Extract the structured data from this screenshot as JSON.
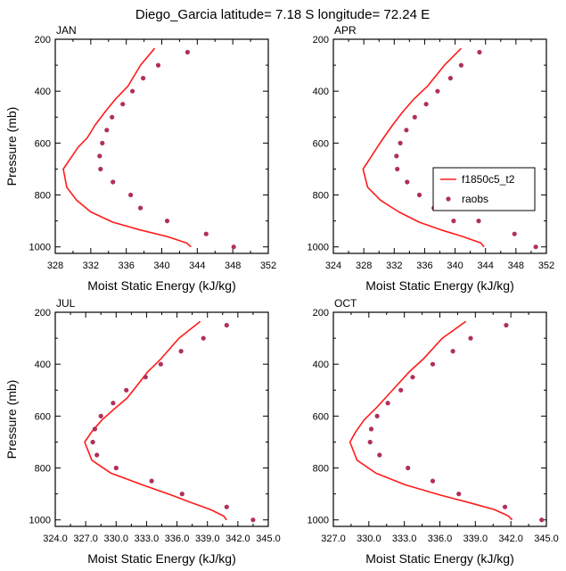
{
  "figure": {
    "title": "Diego_Garcia  latitude= 7.18 S longitude= 72.24 E"
  },
  "legend": {
    "position": "inside APR panel, right-center",
    "line_label": "f1850c5_t2",
    "dot_label": "raobs"
  },
  "colors": {
    "model_line": "#ff1a1a",
    "obs_dots": "#b0305a",
    "axis": "#000000"
  },
  "chart_data": [
    {
      "type": "line",
      "panel": "JAN",
      "month_label": "JAN",
      "xlabel": "Moist Static Energy (kJ/kg)",
      "ylabel": "Pressure (mb)",
      "xlim": [
        328,
        352
      ],
      "ylim": [
        200,
        1025
      ],
      "y_inverted": true,
      "xticks": [
        328,
        332,
        336,
        340,
        344,
        348,
        352
      ],
      "xtick_labels": [
        "328",
        "332",
        "336",
        "340",
        "344",
        "348",
        "352"
      ],
      "yticks": [
        200,
        400,
        600,
        800,
        1000
      ],
      "ytick_labels": [
        "200",
        "400",
        "600",
        "800",
        "1000"
      ],
      "show_ylabel": true,
      "series": [
        {
          "name": "f1850c5_t2",
          "kind": "line",
          "x": [
            339.2,
            337.6,
            336.2,
            334.8,
            333.6,
            332.5,
            331.6,
            330.6,
            329.7,
            328.9,
            329.3,
            330.4,
            332.0,
            334.5,
            337.6,
            340.6,
            342.8,
            343.3
          ],
          "y": [
            235,
            300,
            380,
            430,
            480,
            530,
            580,
            615,
            660,
            700,
            770,
            820,
            865,
            905,
            935,
            960,
            985,
            1000
          ]
        },
        {
          "name": "raobs",
          "kind": "scatter",
          "x": [
            342.9,
            339.6,
            337.9,
            336.7,
            335.6,
            334.4,
            333.8,
            333.3,
            333.0,
            333.1,
            334.5,
            336.5,
            337.6,
            340.6,
            345.0,
            348.1
          ],
          "y": [
            250,
            300,
            350,
            400,
            450,
            500,
            550,
            600,
            650,
            700,
            750,
            800,
            850,
            900,
            950,
            1000
          ]
        }
      ]
    },
    {
      "type": "line",
      "panel": "APR",
      "month_label": "APR",
      "xlabel": "Moist Static Energy (kJ/kg)",
      "ylabel": "",
      "xlim": [
        324,
        352
      ],
      "ylim": [
        200,
        1025
      ],
      "y_inverted": true,
      "xticks": [
        324,
        328,
        332,
        336,
        340,
        344,
        348,
        352
      ],
      "xtick_labels": [
        "324",
        "328",
        "332",
        "336",
        "340",
        "344",
        "348",
        "352"
      ],
      "yticks": [
        200,
        400,
        600,
        800,
        1000
      ],
      "ytick_labels": [
        "200",
        "400",
        "600",
        "800",
        "1000"
      ],
      "show_ylabel": false,
      "series": [
        {
          "name": "f1850c5_t2",
          "kind": "line",
          "x": [
            340.8,
            338.6,
            336.4,
            334.6,
            333.1,
            331.8,
            330.6,
            329.8,
            328.8,
            327.9,
            328.5,
            330.2,
            332.6,
            335.3,
            338.2,
            341.0,
            343.4,
            343.8
          ],
          "y": [
            235,
            300,
            380,
            430,
            480,
            530,
            580,
            615,
            660,
            700,
            770,
            820,
            865,
            905,
            935,
            960,
            985,
            1000
          ]
        },
        {
          "name": "raobs",
          "kind": "scatter",
          "x": [
            343.2,
            340.8,
            339.4,
            337.7,
            336.2,
            334.7,
            333.6,
            332.8,
            332.3,
            332.4,
            333.7,
            335.3,
            337.2,
            339.8,
            343.1,
            347.8,
            350.6
          ],
          "y": [
            250,
            300,
            350,
            400,
            450,
            500,
            550,
            600,
            650,
            700,
            750,
            800,
            850,
            900,
            900,
            950,
            1000
          ]
        }
      ]
    },
    {
      "type": "line",
      "panel": "JUL",
      "month_label": "JUL",
      "xlabel": "Moist Static Energy (kJ/kg)",
      "ylabel": "Pressure (mb)",
      "xlim": [
        324,
        345
      ],
      "ylim": [
        200,
        1025
      ],
      "y_inverted": true,
      "xticks": [
        324,
        327,
        330,
        333,
        336,
        339,
        342,
        345
      ],
      "xtick_labels": [
        "324.0",
        "327.0",
        "330.0",
        "333.0",
        "336.0",
        "339.0",
        "342.0",
        "345.0"
      ],
      "yticks": [
        200,
        400,
        600,
        800,
        1000
      ],
      "ytick_labels": [
        "200",
        "400",
        "600",
        "800",
        "1000"
      ],
      "show_ylabel": true,
      "series": [
        {
          "name": "f1850c5_t2",
          "kind": "line",
          "x": [
            338.3,
            336.2,
            334.4,
            333.1,
            332.1,
            331.1,
            329.9,
            328.6,
            327.6,
            326.9,
            327.6,
            329.5,
            332.6,
            335.5,
            337.5,
            339.3,
            340.6,
            340.9
          ],
          "y": [
            235,
            300,
            380,
            430,
            480,
            530,
            570,
            615,
            660,
            700,
            770,
            820,
            865,
            905,
            935,
            960,
            985,
            1000
          ]
        },
        {
          "name": "raobs",
          "kind": "scatter",
          "x": [
            340.9,
            338.6,
            336.4,
            334.4,
            332.9,
            331.0,
            329.7,
            328.5,
            327.9,
            327.7,
            328.1,
            330.0,
            333.5,
            336.5,
            340.9,
            343.5
          ],
          "y": [
            250,
            300,
            350,
            400,
            450,
            500,
            550,
            600,
            650,
            700,
            750,
            800,
            850,
            900,
            950,
            1000
          ]
        }
      ]
    },
    {
      "type": "line",
      "panel": "OCT",
      "month_label": "OCT",
      "xlabel": "Moist Static Energy (kJ/kg)",
      "ylabel": "",
      "xlim": [
        327,
        345
      ],
      "ylim": [
        200,
        1025
      ],
      "y_inverted": true,
      "xticks": [
        327,
        330,
        333,
        336,
        339,
        342,
        345
      ],
      "xtick_labels": [
        "327.0",
        "330.0",
        "333.0",
        "336.0",
        "339.0",
        "342.0",
        "345.0"
      ],
      "yticks": [
        200,
        400,
        600,
        800,
        1000
      ],
      "ytick_labels": [
        "200",
        "400",
        "600",
        "800",
        "1000"
      ],
      "show_ylabel": false,
      "series": [
        {
          "name": "f1850c5_t2",
          "kind": "line",
          "x": [
            338.2,
            336.2,
            334.6,
            333.4,
            332.4,
            331.4,
            330.6,
            329.6,
            328.9,
            328.4,
            329.0,
            330.6,
            333.1,
            336.1,
            338.6,
            340.6,
            341.8,
            342.1
          ],
          "y": [
            235,
            300,
            380,
            430,
            480,
            530,
            570,
            615,
            660,
            700,
            770,
            820,
            865,
            905,
            935,
            960,
            985,
            1000
          ]
        },
        {
          "name": "raobs",
          "kind": "scatter",
          "x": [
            341.6,
            338.6,
            337.1,
            335.4,
            333.7,
            332.7,
            331.6,
            330.7,
            330.2,
            330.1,
            330.9,
            333.3,
            335.4,
            337.6,
            341.5,
            344.6
          ],
          "y": [
            250,
            300,
            350,
            400,
            450,
            500,
            550,
            600,
            650,
            700,
            750,
            800,
            850,
            900,
            950,
            1000
          ]
        }
      ]
    }
  ]
}
